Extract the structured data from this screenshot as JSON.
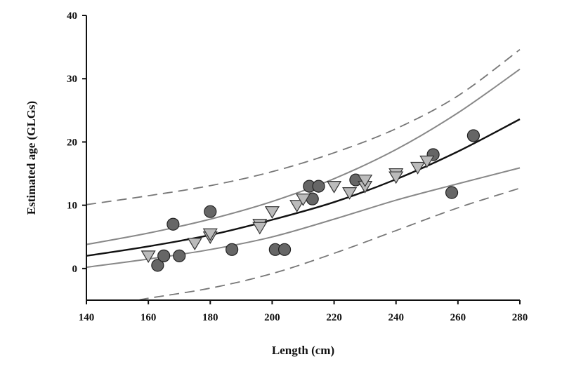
{
  "chart_data": {
    "type": "scatter",
    "xlabel": "Length (cm)",
    "ylabel": "Estimated age (GLGs)",
    "xlim": [
      140,
      280
    ],
    "ylim": [
      -5,
      40
    ],
    "xticks": [
      140,
      160,
      180,
      200,
      220,
      240,
      260,
      280
    ],
    "yticks": [
      0,
      10,
      20,
      30,
      40
    ],
    "grid": false,
    "legend": "none",
    "points_circles": {
      "marker": "circle",
      "color": "#666666",
      "x": [
        163,
        165,
        168,
        170,
        180,
        187,
        201,
        204,
        212,
        213,
        215,
        227,
        252,
        258,
        265
      ],
      "y": [
        0.5,
        2,
        7,
        2,
        9,
        3,
        3,
        3,
        13,
        11,
        13,
        14,
        18,
        12,
        21
      ]
    },
    "points_triangles": {
      "marker": "triangle-down",
      "color": "#bbbbbb",
      "x": [
        160,
        175,
        180,
        180,
        196,
        196,
        200,
        208,
        210,
        220,
        225,
        230,
        230,
        240,
        240,
        247,
        250
      ],
      "y": [
        2,
        4,
        5,
        5.5,
        7,
        6.5,
        9,
        10,
        11,
        13,
        12,
        13,
        14,
        15,
        14.5,
        16,
        17
      ]
    },
    "curves": [
      {
        "role": "fit",
        "style": "solid-black",
        "x": [
          140,
          160,
          180,
          200,
          220,
          240,
          260,
          280
        ],
        "y": [
          2,
          3.5,
          5.3,
          7.7,
          10.5,
          14.1,
          18.5,
          23.6
        ]
      },
      {
        "role": "upper-confidence",
        "style": "solid-gray",
        "x": [
          140,
          160,
          180,
          200,
          220,
          240,
          260,
          280
        ],
        "y": [
          3.8,
          5.6,
          7.8,
          10.6,
          14.2,
          18.8,
          24.6,
          31.5
        ]
      },
      {
        "role": "lower-confidence",
        "style": "solid-gray",
        "x": [
          140,
          160,
          180,
          200,
          220,
          240,
          260,
          280
        ],
        "y": [
          0.2,
          1.5,
          3.0,
          5.0,
          7.8,
          10.8,
          13.4,
          15.9
        ]
      },
      {
        "role": "upper-prediction",
        "style": "dashed-gray",
        "x": [
          140,
          160,
          180,
          200,
          220,
          240,
          260,
          280
        ],
        "y": [
          10.1,
          11.5,
          13.1,
          15.3,
          18.3,
          22.1,
          27.3,
          34.6
        ]
      },
      {
        "role": "lower-prediction",
        "style": "dashed-gray",
        "x": [
          157,
          160,
          180,
          200,
          220,
          240,
          260,
          280
        ],
        "y": [
          -5,
          -4.7,
          -3.1,
          -0.8,
          2.4,
          6.0,
          9.6,
          12.7
        ]
      }
    ]
  }
}
